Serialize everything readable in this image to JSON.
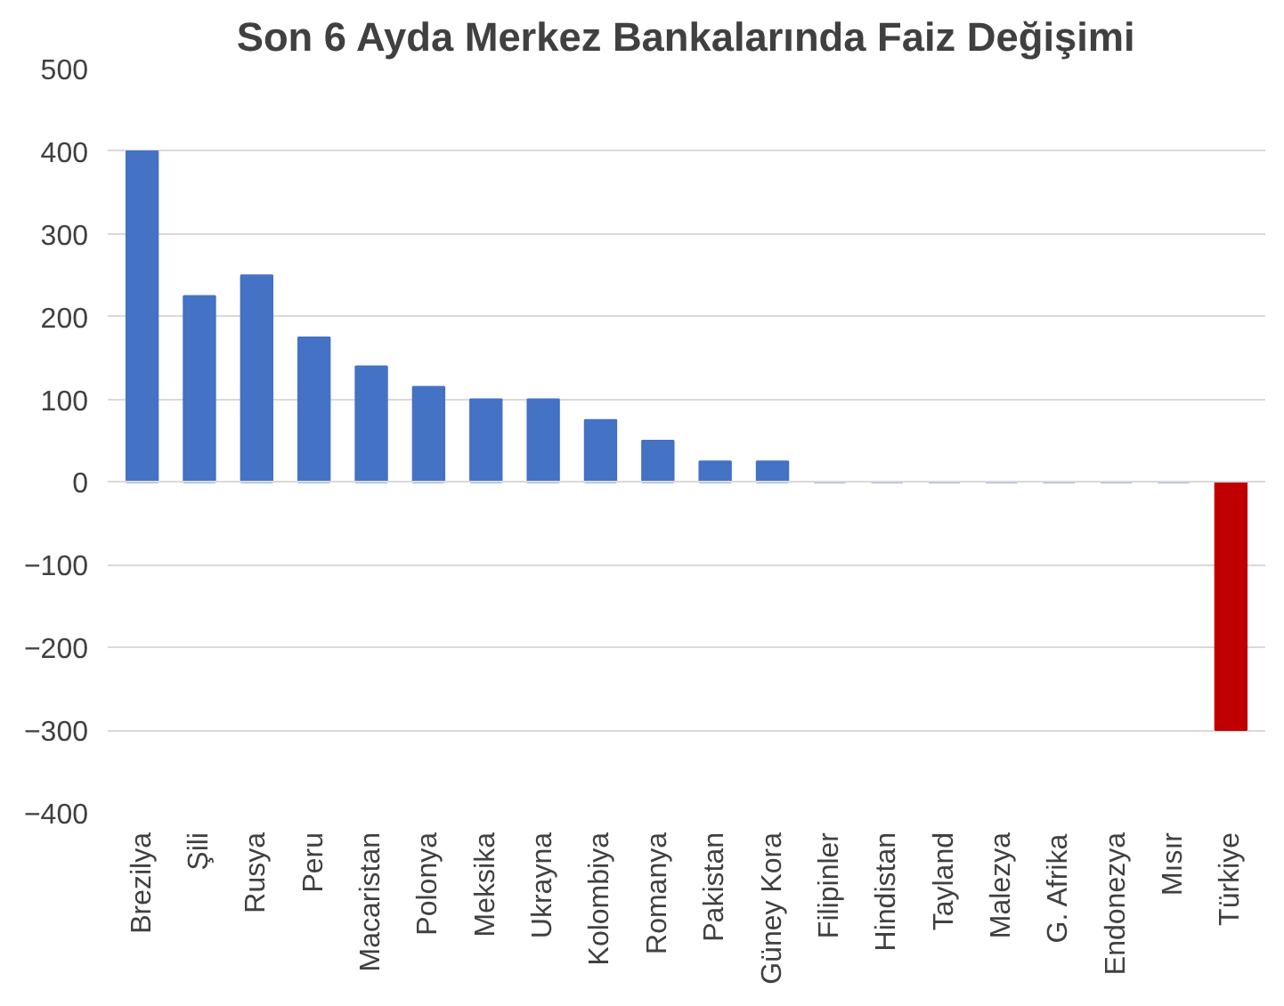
{
  "chart_data": {
    "type": "bar",
    "title": "Son 6 Ayda Merkez Bankalarında Faiz Değişimi",
    "categories": [
      "Brezilya",
      "Şili",
      "Rusya",
      "Peru",
      "Macaristan",
      "Polonya",
      "Meksika",
      "Ukrayna",
      "Kolombiya",
      "Romanya",
      "Pakistan",
      "Güney Kora",
      "Filipinler",
      "Hindistan",
      "Tayland",
      "Malezya",
      "G. Afrika",
      "Endonezya",
      "Mısır",
      "Türkiye"
    ],
    "values": [
      400,
      225,
      250,
      175,
      140,
      115,
      100,
      100,
      75,
      50,
      25,
      25,
      0,
      0,
      0,
      0,
      0,
      0,
      0,
      -300
    ],
    "colors": [
      "#4472c4",
      "#4472c4",
      "#4472c4",
      "#4472c4",
      "#4472c4",
      "#4472c4",
      "#4472c4",
      "#4472c4",
      "#4472c4",
      "#4472c4",
      "#4472c4",
      "#4472c4",
      "#4472c4",
      "#4472c4",
      "#4472c4",
      "#4472c4",
      "#4472c4",
      "#4472c4",
      "#4472c4",
      "#c00000"
    ],
    "ylim": [
      -400,
      500
    ],
    "yticks": [
      -400,
      -300,
      -200,
      -100,
      0,
      100,
      200,
      300,
      400,
      500
    ],
    "grid": "y"
  }
}
